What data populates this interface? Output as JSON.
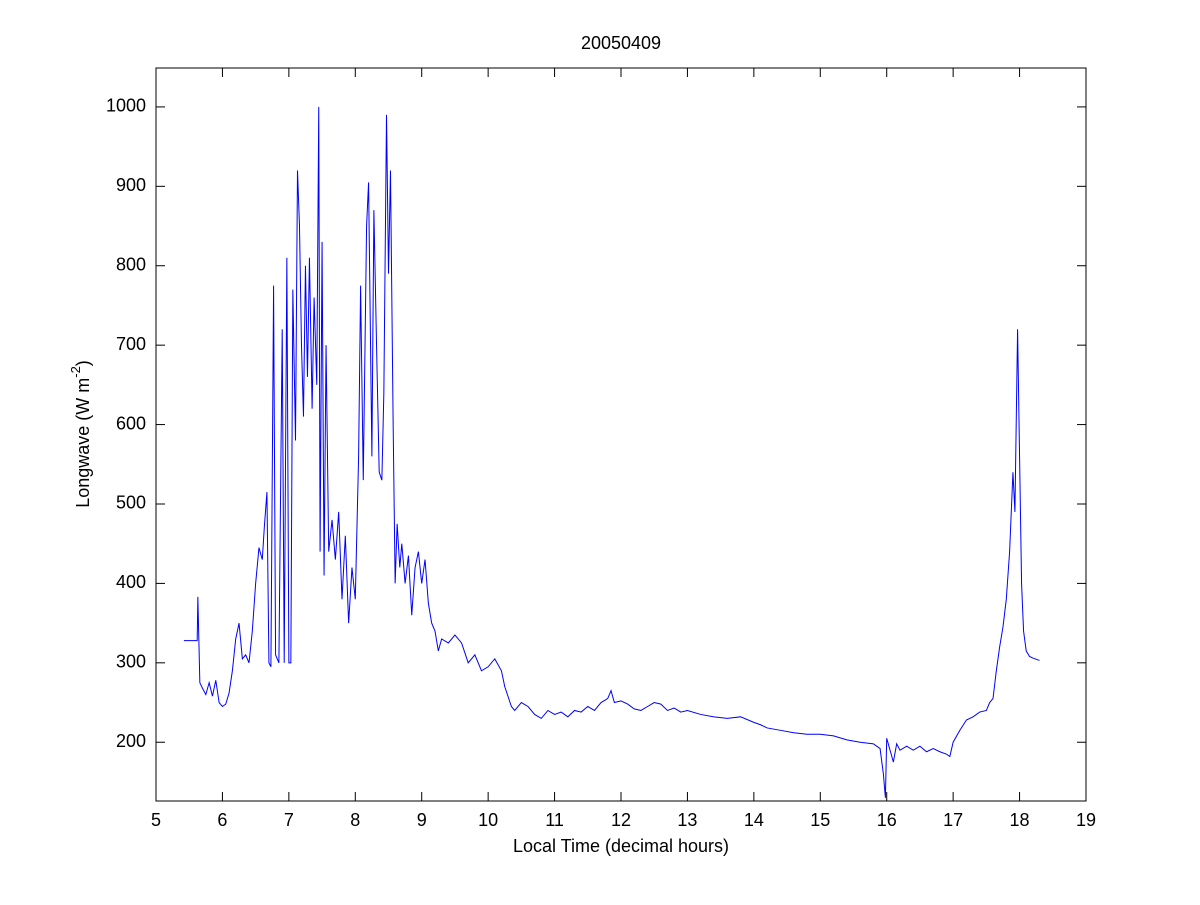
{
  "chart_data": {
    "type": "line",
    "title": "20050409",
    "xlabel": "Local Time (decimal hours)",
    "ylabel": {
      "text": "Longwave (W m",
      "superscript": "-2",
      "suffix": ")"
    },
    "color": "#0000ff",
    "xlim": [
      5,
      19
    ],
    "xticks": [
      5,
      6,
      7,
      8,
      9,
      10,
      11,
      12,
      13,
      14,
      15,
      16,
      17,
      18,
      19
    ],
    "ylim": [
      126,
      1049
    ],
    "yticks": [
      200,
      300,
      400,
      500,
      600,
      700,
      800,
      900,
      1000
    ],
    "grid": false,
    "x": [
      5.42,
      5.62,
      5.63,
      5.66,
      5.7,
      5.75,
      5.8,
      5.85,
      5.9,
      5.95,
      6.0,
      6.05,
      6.1,
      6.15,
      6.2,
      6.25,
      6.3,
      6.35,
      6.4,
      6.45,
      6.5,
      6.55,
      6.6,
      6.63,
      6.67,
      6.7,
      6.73,
      6.77,
      6.8,
      6.85,
      6.9,
      6.93,
      6.97,
      7.0,
      7.03,
      7.06,
      7.1,
      7.13,
      7.16,
      7.19,
      7.22,
      7.25,
      7.28,
      7.31,
      7.35,
      7.38,
      7.42,
      7.45,
      7.47,
      7.5,
      7.53,
      7.56,
      7.6,
      7.65,
      7.7,
      7.75,
      7.8,
      7.85,
      7.9,
      7.95,
      8.0,
      8.05,
      8.08,
      8.12,
      8.17,
      8.2,
      8.25,
      8.28,
      8.32,
      8.36,
      8.4,
      8.43,
      8.47,
      8.5,
      8.53,
      8.57,
      8.6,
      8.63,
      8.67,
      8.7,
      8.75,
      8.8,
      8.85,
      8.9,
      8.95,
      9.0,
      9.05,
      9.1,
      9.15,
      9.2,
      9.25,
      9.3,
      9.4,
      9.5,
      9.6,
      9.7,
      9.8,
      9.9,
      10.0,
      10.1,
      10.2,
      10.25,
      10.35,
      10.4,
      10.5,
      10.6,
      10.7,
      10.8,
      10.9,
      11.0,
      11.1,
      11.2,
      11.3,
      11.4,
      11.5,
      11.6,
      11.7,
      11.8,
      11.85,
      11.9,
      12.0,
      12.1,
      12.2,
      12.3,
      12.4,
      12.5,
      12.6,
      12.7,
      12.8,
      12.9,
      13.0,
      13.2,
      13.4,
      13.6,
      13.8,
      14.0,
      14.1,
      14.2,
      14.4,
      14.6,
      14.8,
      15.0,
      15.2,
      15.4,
      15.6,
      15.8,
      15.9,
      15.95,
      15.98,
      16.0,
      16.05,
      16.1,
      16.15,
      16.2,
      16.3,
      16.4,
      16.5,
      16.6,
      16.7,
      16.8,
      16.9,
      16.95,
      17.0,
      17.1,
      17.2,
      17.3,
      17.4,
      17.5,
      17.55,
      17.6,
      17.65,
      17.7,
      17.75,
      17.8,
      17.85,
      17.9,
      17.93,
      17.97,
      18.0,
      18.03,
      18.06,
      18.1,
      18.15,
      18.2,
      18.3
    ],
    "values": [
      328,
      328,
      383,
      275,
      268,
      260,
      275,
      258,
      278,
      250,
      245,
      248,
      262,
      290,
      330,
      350,
      305,
      310,
      300,
      340,
      400,
      445,
      430,
      470,
      515,
      300,
      295,
      775,
      310,
      300,
      720,
      300,
      810,
      300,
      300,
      770,
      580,
      920,
      850,
      700,
      610,
      800,
      660,
      810,
      620,
      760,
      650,
      1000,
      440,
      830,
      410,
      700,
      440,
      480,
      430,
      490,
      380,
      460,
      350,
      420,
      380,
      560,
      775,
      530,
      850,
      905,
      560,
      870,
      700,
      540,
      530,
      640,
      990,
      790,
      920,
      600,
      400,
      475,
      420,
      450,
      400,
      435,
      360,
      420,
      440,
      400,
      430,
      375,
      350,
      340,
      315,
      330,
      325,
      335,
      325,
      300,
      310,
      290,
      295,
      305,
      290,
      270,
      245,
      240,
      250,
      245,
      235,
      230,
      240,
      235,
      238,
      232,
      240,
      238,
      245,
      240,
      250,
      255,
      265,
      250,
      252,
      248,
      242,
      240,
      245,
      250,
      248,
      240,
      243,
      238,
      240,
      235,
      232,
      230,
      232,
      225,
      222,
      218,
      215,
      212,
      210,
      210,
      208,
      203,
      200,
      198,
      192,
      160,
      130,
      205,
      190,
      175,
      198,
      190,
      195,
      190,
      195,
      188,
      192,
      188,
      185,
      182,
      200,
      215,
      228,
      232,
      238,
      240,
      250,
      255,
      290,
      320,
      345,
      380,
      440,
      540,
      490,
      720,
      560,
      400,
      340,
      315,
      308,
      306,
      303
    ]
  }
}
